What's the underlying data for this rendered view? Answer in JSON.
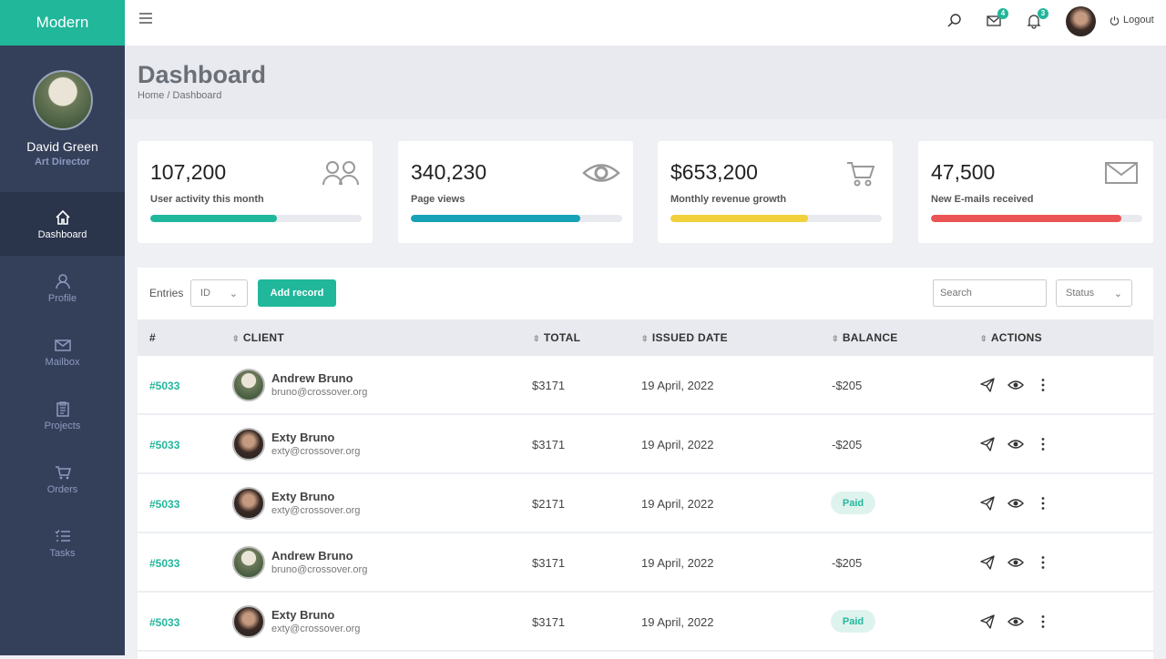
{
  "brand": "Modern",
  "user": {
    "name": "David Green",
    "role": "Art Director"
  },
  "nav": [
    {
      "label": "Dashboard",
      "icon": "home-icon"
    },
    {
      "label": "Profile",
      "icon": "user-icon"
    },
    {
      "label": "Mailbox",
      "icon": "mail-icon"
    },
    {
      "label": "Projects",
      "icon": "clipboard-icon"
    },
    {
      "label": "Orders",
      "icon": "cart-icon"
    },
    {
      "label": "Tasks",
      "icon": "list-icon"
    }
  ],
  "topbar": {
    "mail_count": "4",
    "notif_count": "3",
    "logout": "Logout"
  },
  "header": {
    "title": "Dashboard",
    "breadcrumb": "Home / Dashboard"
  },
  "stats": [
    {
      "value": "107,200",
      "label": "User activity this month",
      "progress": 60,
      "color": "#21b79b",
      "icon": "users-icon"
    },
    {
      "value": "340,230",
      "label": "Page views",
      "progress": 80,
      "color": "#17a2b8",
      "icon": "eye-icon"
    },
    {
      "value": "$653,200",
      "label": "Monthly revenue growth",
      "progress": 65,
      "color": "#f2d03b",
      "icon": "cart-icon"
    },
    {
      "value": "47,500",
      "label": "New E-mails received",
      "progress": 90,
      "color": "#ea5455",
      "icon": "envelope-icon"
    }
  ],
  "table": {
    "entries_label": "Entries",
    "entries_value": "ID",
    "add_label": "Add record",
    "search_placeholder": "Search",
    "status_value": "Status",
    "headers": [
      "#",
      "CLIENT",
      "TOTAL",
      "ISSUED DATE",
      "BALANCE",
      "ACTIONS"
    ],
    "rows": [
      {
        "id": "#5033",
        "name": "Andrew Bruno",
        "email": "bruno@crossover.org",
        "total": "$3171",
        "date": "19 April, 2022",
        "balance": "-$205"
      },
      {
        "id": "#5033",
        "name": "Exty Bruno",
        "email": "exty@crossover.org",
        "total": "$3171",
        "date": "19 April, 2022",
        "balance": "-$205"
      },
      {
        "id": "#5033",
        "name": "Exty Bruno",
        "email": "exty@crossover.org",
        "total": "$2171",
        "date": "19 April, 2022",
        "balance": "Paid"
      },
      {
        "id": "#5033",
        "name": "Andrew Bruno",
        "email": "bruno@crossover.org",
        "total": "$3171",
        "date": "19 April, 2022",
        "balance": "-$205"
      },
      {
        "id": "#5033",
        "name": "Exty Bruno",
        "email": "exty@crossover.org",
        "total": "$3171",
        "date": "19 April, 2022",
        "balance": "Paid"
      }
    ]
  }
}
